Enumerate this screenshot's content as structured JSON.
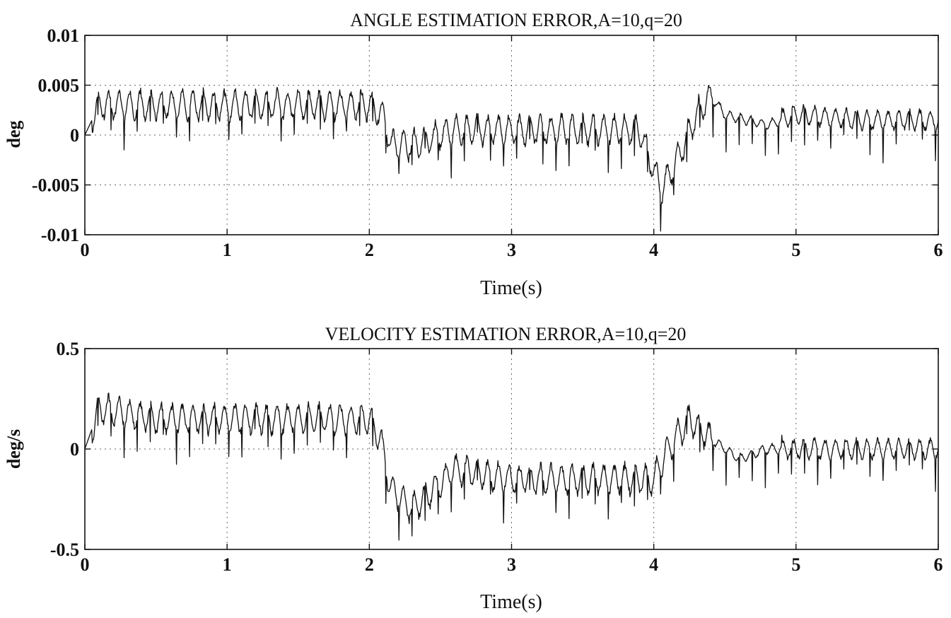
{
  "chart_data": [
    {
      "type": "line",
      "title": "ANGLE ESTIMATION ERROR,A=10,q=20",
      "xlabel": "Time(s)",
      "ylabel": "deg",
      "xlim": [
        0,
        6
      ],
      "ylim": [
        -0.01,
        0.01
      ],
      "xticks": [
        0,
        1,
        2,
        3,
        4,
        5,
        6
      ],
      "xtick_labels": [
        "0",
        "1",
        "2",
        "3",
        "4",
        "5",
        "6"
      ],
      "yticks": [
        0.01,
        0.005,
        0,
        -0.005,
        -0.01
      ],
      "ytick_labels": [
        "0.01",
        "0.005",
        "0",
        "-0.005",
        "-0.01"
      ],
      "grid": true,
      "series": [
        {
          "x": [
            0,
            0.1,
            0.5,
            1.0,
            1.5,
            2.0,
            2.1,
            2.15,
            2.3,
            2.6,
            3.0,
            3.5,
            3.9,
            4.05,
            4.15,
            4.3,
            4.4,
            4.5,
            4.8,
            5.0,
            5.5,
            6.0
          ],
          "y": [
            0,
            0.003,
            0.003,
            0.003,
            0.003,
            0.003,
            0.002,
            -0.001,
            -0.001,
            0.0005,
            0.0005,
            0.0005,
            0.0005,
            -0.0055,
            -0.003,
            0.002,
            0.004,
            0.002,
            0.001,
            0.002,
            0.0015,
            0.0015
          ]
        }
      ]
    },
    {
      "type": "line",
      "title": "VELOCITY ESTIMATION ERROR,A=10,q=20",
      "xlabel": "Time(s)",
      "ylabel": "deg/s",
      "xlim": [
        0,
        6
      ],
      "ylim": [
        -0.5,
        0.5
      ],
      "xticks": [
        0,
        1,
        2,
        3,
        4,
        5,
        6
      ],
      "xtick_labels": [
        "0",
        "1",
        "2",
        "3",
        "4",
        "5",
        "6"
      ],
      "yticks": [
        0.5,
        0,
        -0.5
      ],
      "ytick_labels": [
        "0.5",
        "0",
        "-0.5"
      ],
      "grid": true,
      "series": [
        {
          "x": [
            0,
            0.1,
            0.5,
            1.0,
            1.5,
            2.0,
            2.08,
            2.15,
            2.3,
            2.6,
            3.0,
            3.5,
            4.0,
            4.1,
            4.25,
            4.4,
            4.6,
            4.8,
            5.0,
            5.5,
            6.0
          ],
          "y": [
            0,
            0.2,
            0.15,
            0.15,
            0.15,
            0.15,
            0.05,
            -0.2,
            -0.3,
            -0.1,
            -0.15,
            -0.15,
            -0.15,
            0,
            0.15,
            0.05,
            -0.05,
            0.0,
            0.0,
            0.0,
            0.0
          ]
        }
      ]
    }
  ]
}
